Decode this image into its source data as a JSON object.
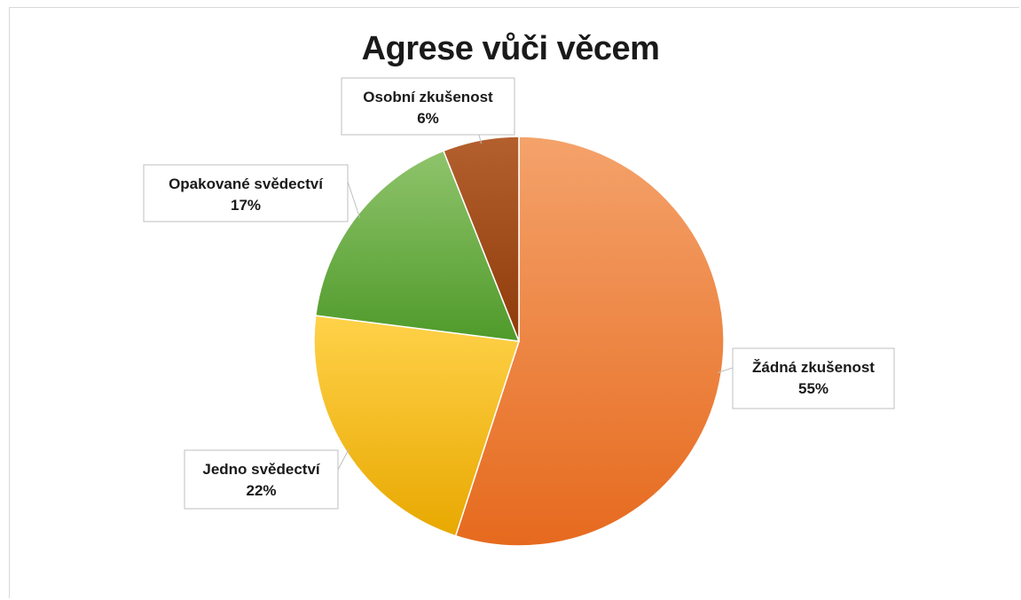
{
  "chart_data": {
    "type": "pie",
    "title": "Agrese vůči věcem",
    "slices": [
      {
        "label": "Žádná zkušenost",
        "value": 55,
        "percent_label": "55%",
        "color_top": "#f4a26b",
        "color_bottom": "#e66a1e"
      },
      {
        "label": "Jedno svědectví",
        "value": 22,
        "percent_label": "22%",
        "color_top": "#ffd24a",
        "color_bottom": "#e8a800"
      },
      {
        "label": "Opakované svědectví",
        "value": 17,
        "percent_label": "17%",
        "color_top": "#8fc46c",
        "color_bottom": "#4f9a2a"
      },
      {
        "label": "Osobní zkušenost",
        "value": 6,
        "percent_label": "6%",
        "color_top": "#b4602e",
        "color_bottom": "#8f3a0a"
      }
    ],
    "start": "12 o'clock",
    "direction": "clockwise",
    "legend": "none",
    "data_labels": "callouts"
  }
}
